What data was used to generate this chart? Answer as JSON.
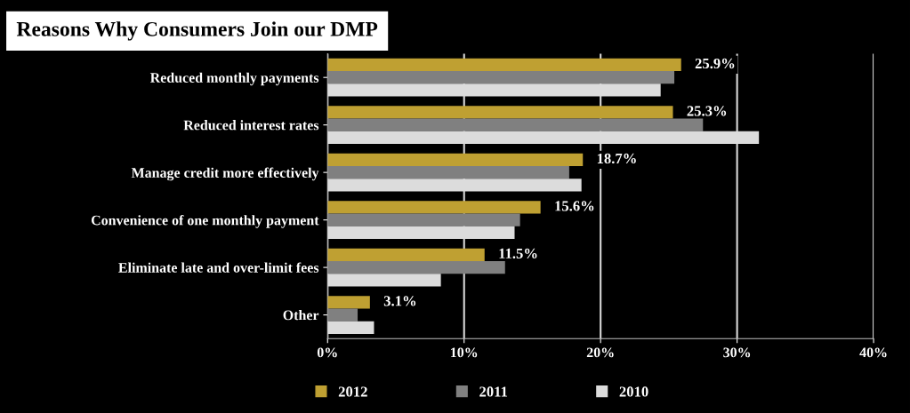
{
  "chart_data": {
    "type": "bar",
    "orientation": "horizontal",
    "title": "Reasons Why Consumers Join our DMP",
    "categories": [
      "Reduced monthly payments",
      "Reduced interest rates",
      "Manage credit more effectively",
      "Convenience of one monthly payment",
      "Eliminate late and over-limit fees",
      "Other"
    ],
    "series": [
      {
        "name": "2012",
        "color": "#bfa032",
        "values": [
          25.9,
          25.3,
          18.7,
          15.6,
          11.5,
          3.1
        ],
        "value_labels": [
          "25.9%",
          "25.3%",
          "18.7%",
          "15.6%",
          "11.5%",
          "3.1%"
        ]
      },
      {
        "name": "2011",
        "color": "#808080",
        "values": [
          25.4,
          27.5,
          17.7,
          14.1,
          13.0,
          2.2
        ]
      },
      {
        "name": "2010",
        "color": "#dcdcdc",
        "values": [
          24.4,
          31.6,
          18.6,
          13.7,
          8.3,
          3.4
        ]
      }
    ],
    "xlim": [
      0,
      40
    ],
    "xticks": [
      {
        "value": 0,
        "label": "0%"
      },
      {
        "value": 10,
        "label": "10%"
      },
      {
        "value": 20,
        "label": "20%"
      },
      {
        "value": 30,
        "label": "30%"
      },
      {
        "value": 40,
        "label": "40%"
      }
    ],
    "grid": "x",
    "legend": "bottom"
  }
}
